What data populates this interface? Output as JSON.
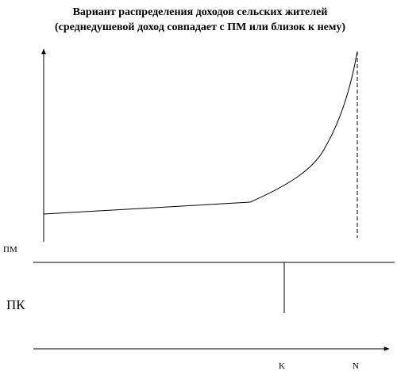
{
  "title": {
    "line1": "Вариант распределения доходов сельских жителей",
    "line2": "(среднедушевой доход совпадает с ПМ или близок к нему)"
  },
  "labels": {
    "pm": "ПМ",
    "pk": "ПК",
    "k": "K",
    "n": "N"
  }
}
